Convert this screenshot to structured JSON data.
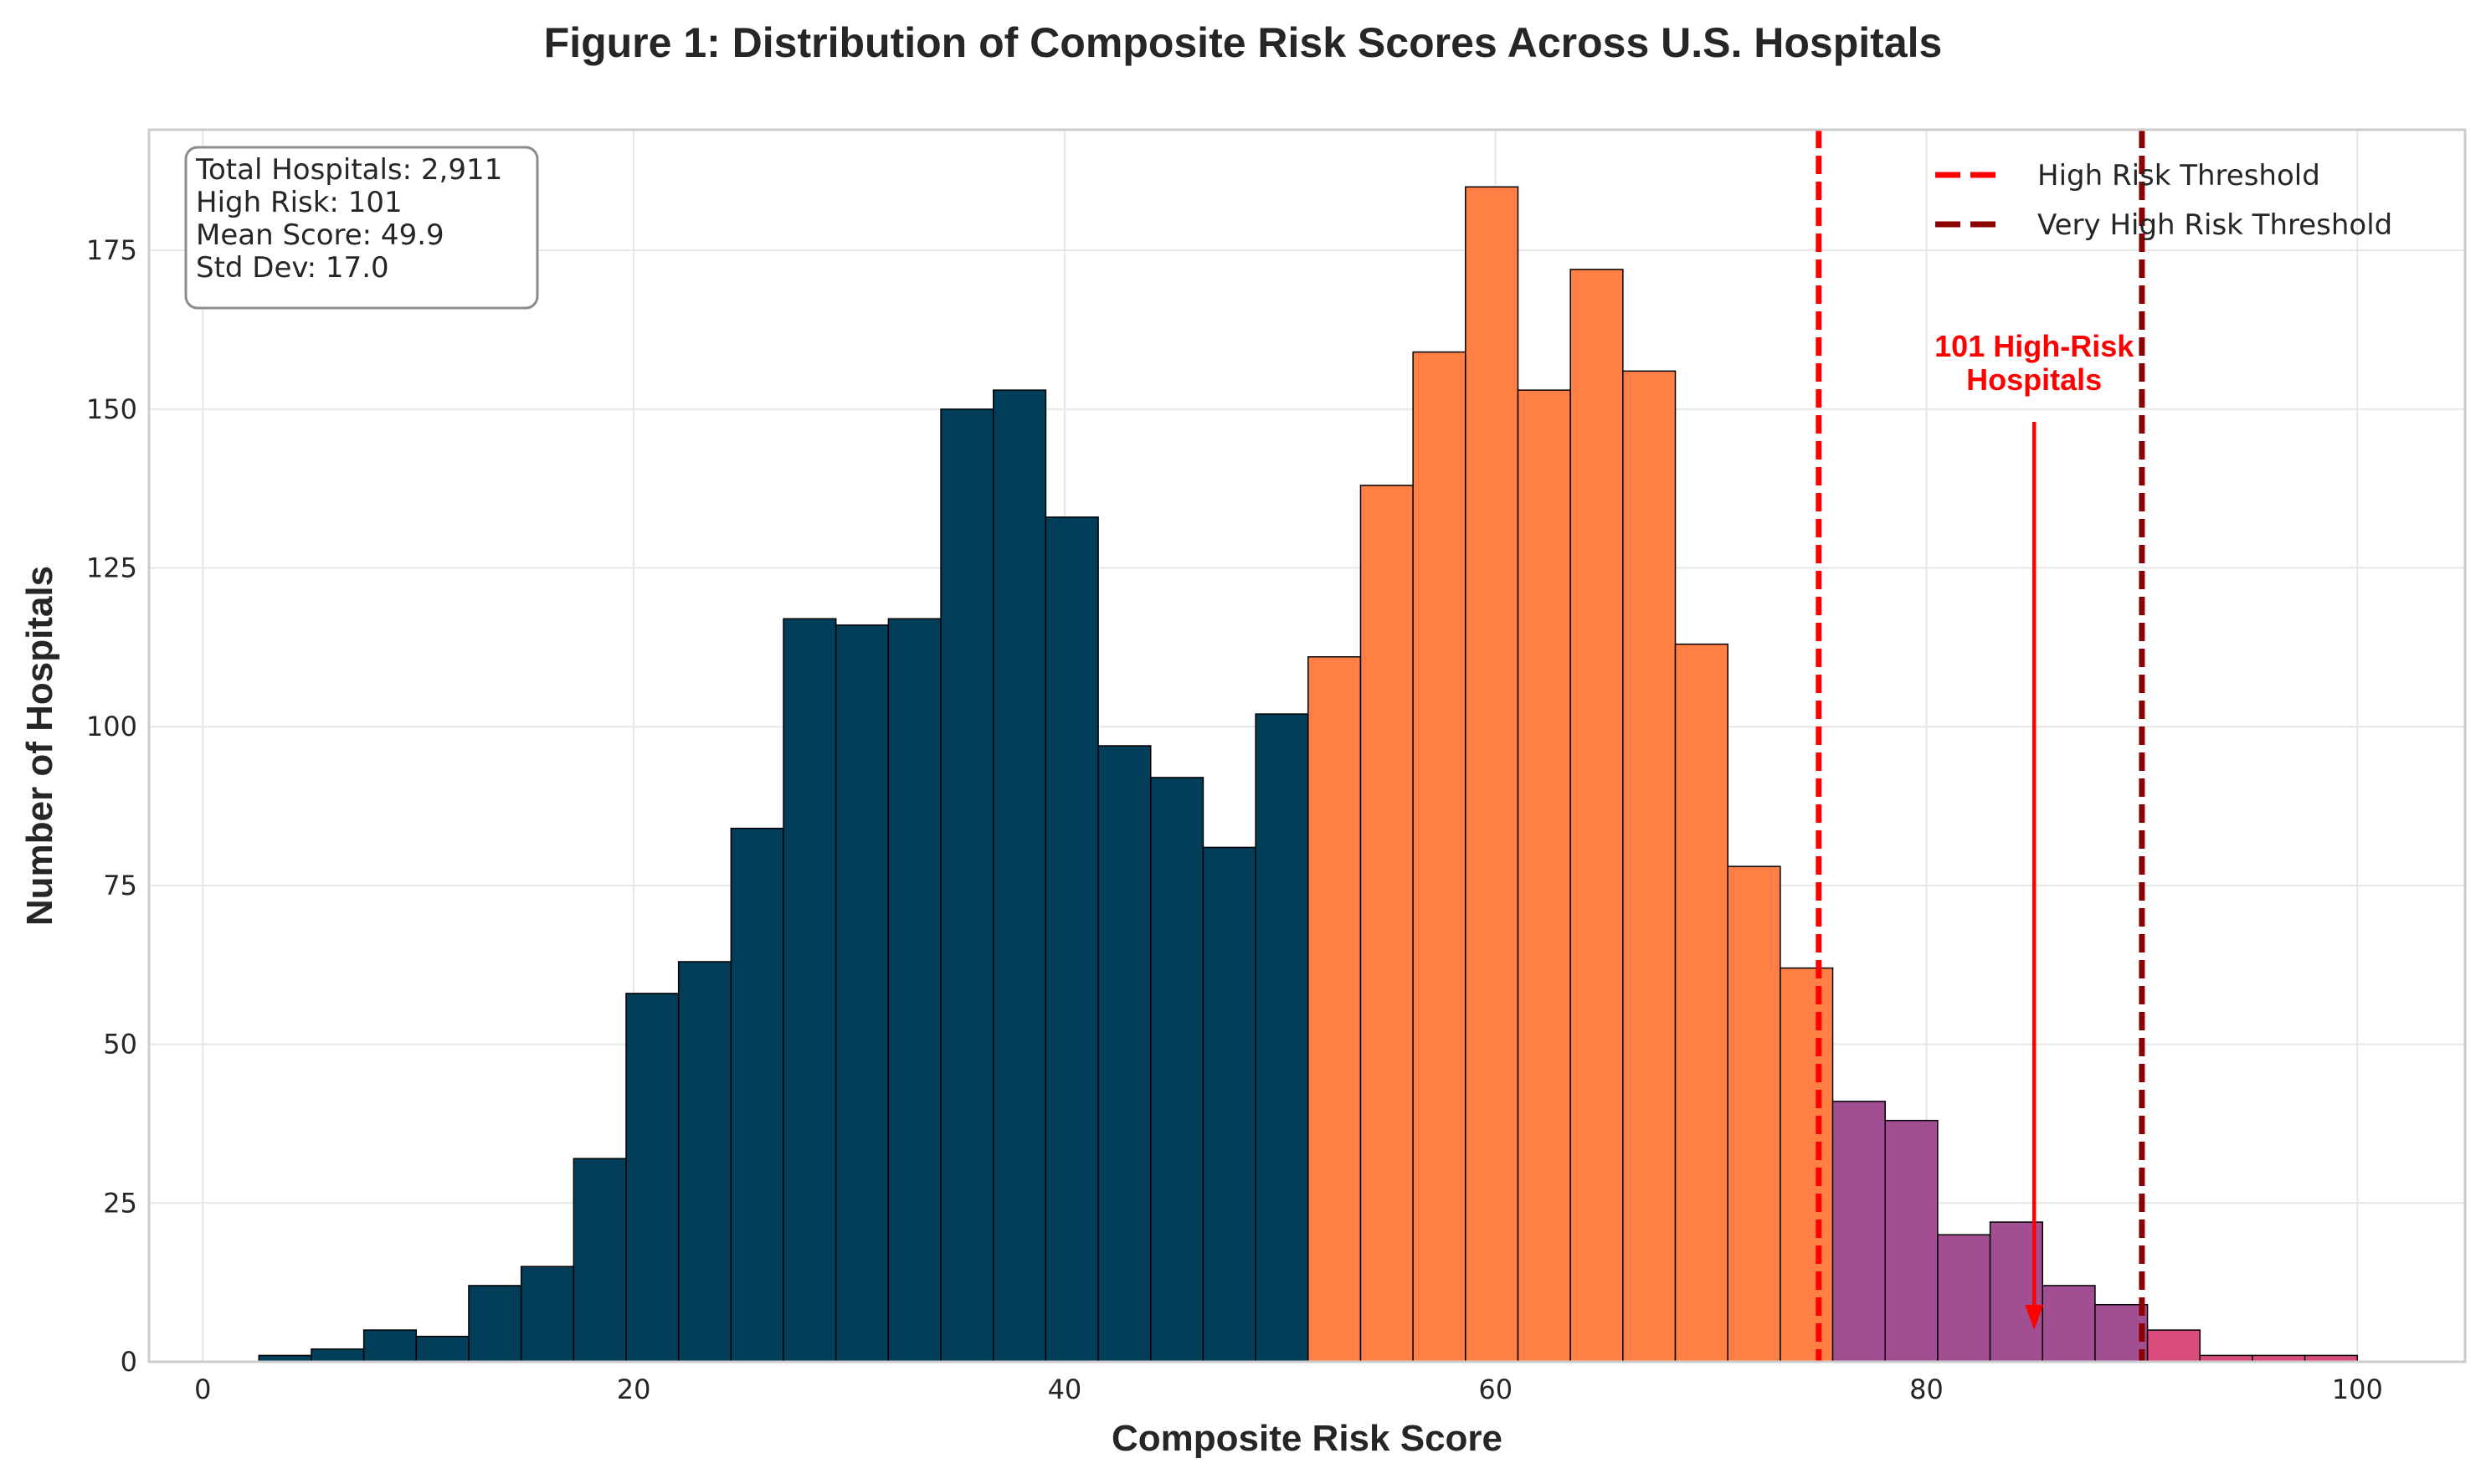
{
  "chart_data": {
    "type": "bar",
    "title": "Figure 1: Distribution of Composite Risk Scores Across U.S. Hospitals",
    "xlabel": "Composite Risk Score",
    "ylabel": "Number of Hospitals",
    "xlim": [
      -2.5,
      105
    ],
    "ylim": [
      0,
      194
    ],
    "x_ticks": [
      0,
      20,
      40,
      60,
      80,
      100
    ],
    "y_ticks": [
      0,
      25,
      50,
      75,
      100,
      125,
      150,
      175
    ],
    "grid": true,
    "bin_start": 2.6,
    "bin_width": 2.435,
    "counts": [
      1,
      2,
      5,
      4,
      12,
      15,
      32,
      58,
      63,
      84,
      117,
      116,
      117,
      150,
      153,
      133,
      97,
      92,
      81,
      102,
      111,
      138,
      159,
      185,
      153,
      172,
      156,
      113,
      78,
      62,
      41,
      38,
      20,
      22,
      12,
      9,
      5,
      1,
      1,
      1
    ],
    "bin_colors": [
      "#023d5a",
      "#023d5a",
      "#023d5a",
      "#023d5a",
      "#023d5a",
      "#023d5a",
      "#023d5a",
      "#023d5a",
      "#023d5a",
      "#023d5a",
      "#023d5a",
      "#023d5a",
      "#023d5a",
      "#023d5a",
      "#023d5a",
      "#023d5a",
      "#023d5a",
      "#023d5a",
      "#023d5a",
      "#023d5a",
      "#ff7f45",
      "#ff7f45",
      "#ff7f45",
      "#ff7f45",
      "#ff7f45",
      "#ff7f45",
      "#ff7f45",
      "#ff7f45",
      "#ff7f45",
      "#ff7f45",
      "#a14f92",
      "#a14f92",
      "#a14f92",
      "#a14f92",
      "#a14f92",
      "#a14f92",
      "#d94c7c",
      "#d94c7c",
      "#d94c7c",
      "#d94c7c"
    ],
    "thresholds": [
      {
        "name": "High Risk Threshold",
        "x": 75,
        "color": "#ff0000"
      },
      {
        "name": "Very High Risk Threshold",
        "x": 90,
        "color": "#8b0000"
      }
    ],
    "legend": {
      "placement": "top-right"
    },
    "stats_box": [
      "Total Hospitals: 2,911",
      "High Risk: 101",
      "Mean Score: 49.9",
      "Std Dev: 17.0"
    ],
    "annotation": {
      "lines": [
        "101 High-Risk",
        "Hospitals"
      ],
      "text_x": 85,
      "text_y": 153,
      "arrow_from": [
        85,
        148
      ],
      "arrow_to": [
        85,
        5
      ],
      "color": "#ff0000"
    }
  }
}
